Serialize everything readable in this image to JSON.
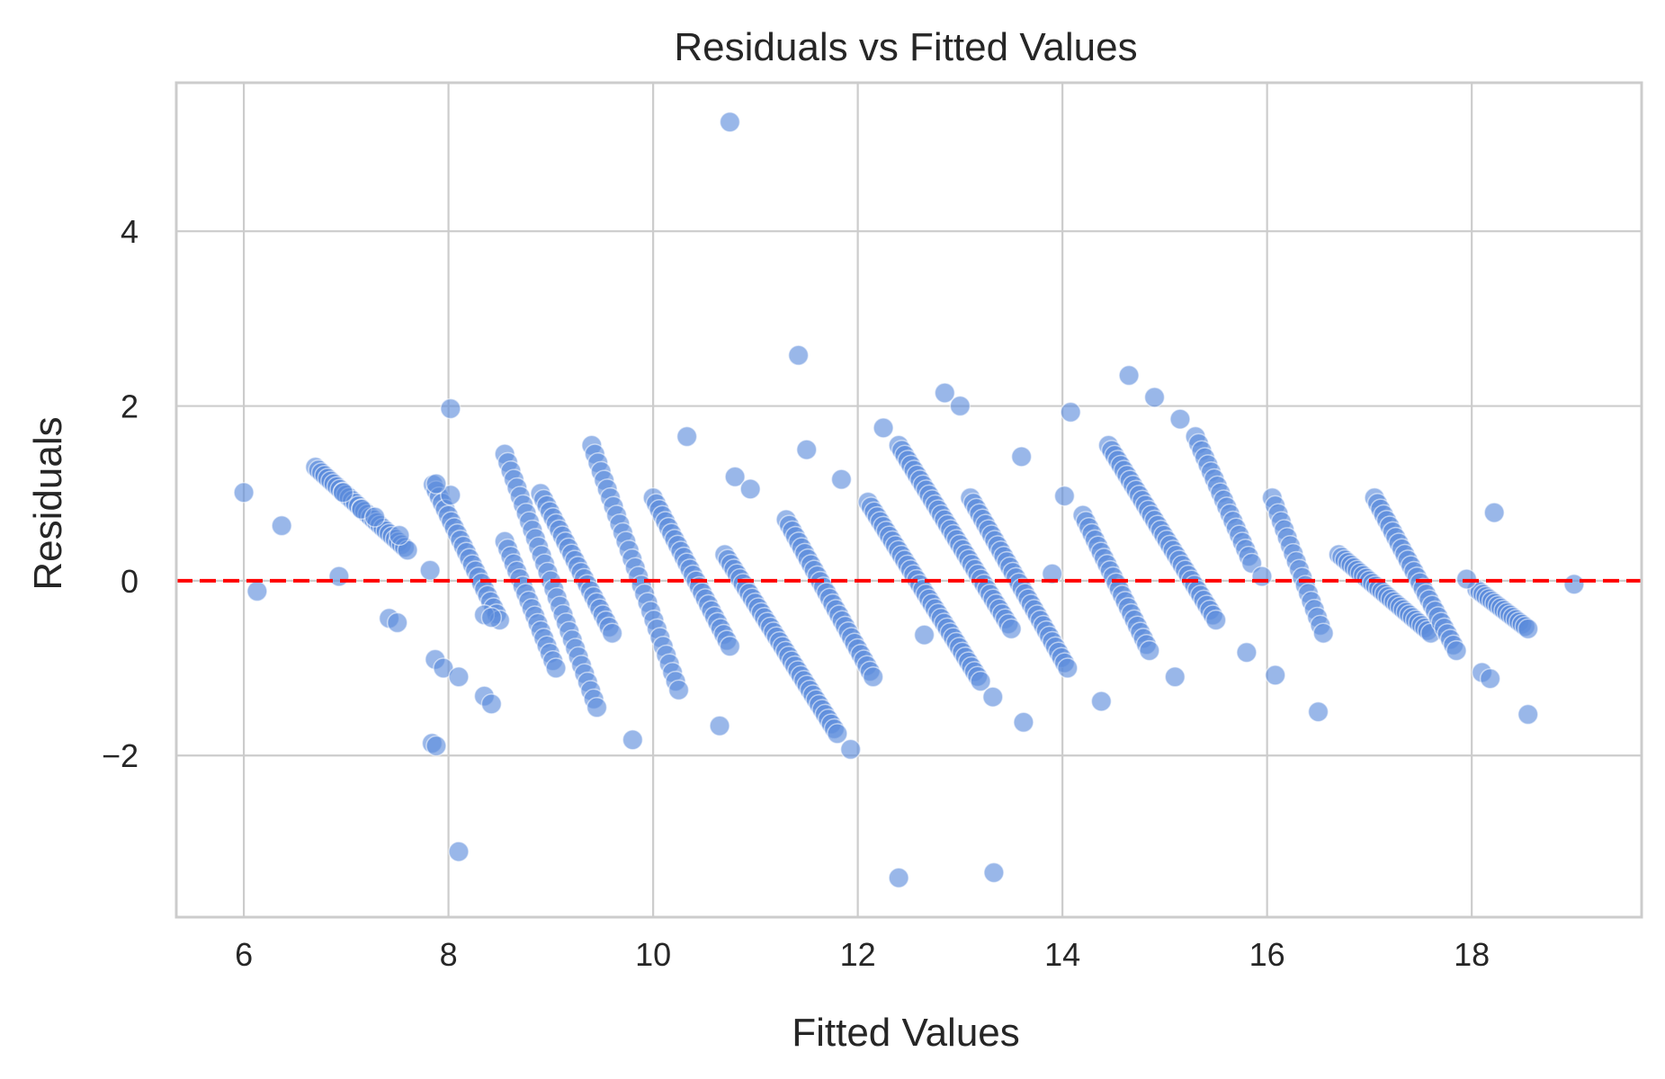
{
  "chart_data": {
    "type": "scatter",
    "title": "Residuals vs Fitted Values",
    "xlabel": "Fitted Values",
    "ylabel": "Residuals",
    "xlim": [
      5.34,
      19.66
    ],
    "ylim": [
      -3.85,
      5.7
    ],
    "x_ticks": [
      6,
      8,
      10,
      12,
      14,
      16,
      18
    ],
    "x_tick_labels": [
      "6",
      "8",
      "10",
      "12",
      "14",
      "16",
      "18"
    ],
    "y_ticks": [
      -2,
      0,
      2,
      4
    ],
    "y_tick_labels": [
      "−2",
      "0",
      "2",
      "4"
    ],
    "grid": true,
    "reference_line": {
      "y": 0,
      "style": "dashed",
      "color": "#ff0000"
    },
    "point_color": "#5b8bdb",
    "bands": [
      {
        "x0": 6.7,
        "x1": 7.6,
        "y0": 1.3,
        "y1": 0.35
      },
      {
        "x0": 7.85,
        "x1": 8.5,
        "y0": 1.1,
        "y1": -0.45
      },
      {
        "x0": 8.55,
        "x1": 9.45,
        "y0": 1.45,
        "y1": -1.45
      },
      {
        "x0": 8.55,
        "x1": 9.05,
        "y0": 0.45,
        "y1": -1.0
      },
      {
        "x0": 9.4,
        "x1": 10.25,
        "y0": 1.55,
        "y1": -1.25
      },
      {
        "x0": 8.9,
        "x1": 9.6,
        "y0": 1.0,
        "y1": -0.6
      },
      {
        "x0": 10.0,
        "x1": 10.75,
        "y0": 0.95,
        "y1": -0.75
      },
      {
        "x0": 10.7,
        "x1": 11.8,
        "y0": 0.3,
        "y1": -1.75
      },
      {
        "x0": 11.3,
        "x1": 12.15,
        "y0": 0.7,
        "y1": -1.1
      },
      {
        "x0": 12.1,
        "x1": 13.2,
        "y0": 0.9,
        "y1": -1.15
      },
      {
        "x0": 12.4,
        "x1": 13.5,
        "y0": 1.55,
        "y1": -0.55
      },
      {
        "x0": 13.1,
        "x1": 14.05,
        "y0": 0.95,
        "y1": -1.0
      },
      {
        "x0": 14.2,
        "x1": 14.85,
        "y0": 0.75,
        "y1": -0.8
      },
      {
        "x0": 14.45,
        "x1": 15.5,
        "y0": 1.55,
        "y1": -0.45
      },
      {
        "x0": 15.3,
        "x1": 15.85,
        "y0": 1.65,
        "y1": 0.2
      },
      {
        "x0": 16.05,
        "x1": 16.55,
        "y0": 0.95,
        "y1": -0.6
      },
      {
        "x0": 16.7,
        "x1": 17.6,
        "y0": 0.3,
        "y1": -0.6
      },
      {
        "x0": 17.05,
        "x1": 17.85,
        "y0": 0.95,
        "y1": -0.8
      },
      {
        "x0": 18.05,
        "x1": 18.55,
        "y0": -0.1,
        "y1": -0.55
      }
    ],
    "points": [
      [
        10.75,
        5.25
      ],
      [
        11.42,
        2.58
      ],
      [
        14.65,
        2.35
      ],
      [
        12.85,
        2.15
      ],
      [
        13.0,
        2.0
      ],
      [
        14.9,
        2.1
      ],
      [
        8.02,
        1.97
      ],
      [
        14.08,
        1.93
      ],
      [
        15.15,
        1.85
      ],
      [
        12.25,
        1.75
      ],
      [
        10.33,
        1.65
      ],
      [
        13.6,
        1.42
      ],
      [
        11.5,
        1.5
      ],
      [
        11.84,
        1.16
      ],
      [
        10.8,
        1.19
      ],
      [
        10.95,
        1.05
      ],
      [
        14.02,
        0.97
      ],
      [
        8.02,
        0.98
      ],
      [
        7.88,
        1.11
      ],
      [
        6.0,
        1.01
      ],
      [
        6.97,
        1.01
      ],
      [
        6.37,
        0.63
      ],
      [
        7.15,
        0.82
      ],
      [
        7.28,
        0.73
      ],
      [
        7.52,
        0.52
      ],
      [
        6.93,
        0.05
      ],
      [
        7.82,
        0.12
      ],
      [
        6.13,
        -0.12
      ],
      [
        7.42,
        -0.43
      ],
      [
        7.5,
        -0.48
      ],
      [
        8.35,
        -0.39
      ],
      [
        8.42,
        -0.42
      ],
      [
        8.35,
        -1.32
      ],
      [
        8.42,
        -1.41
      ],
      [
        7.87,
        -0.9
      ],
      [
        7.95,
        -1.0
      ],
      [
        8.1,
        -1.1
      ],
      [
        7.84,
        -1.86
      ],
      [
        7.88,
        -1.89
      ],
      [
        8.1,
        -3.1
      ],
      [
        9.8,
        -1.82
      ],
      [
        10.65,
        -1.66
      ],
      [
        11.93,
        -1.93
      ],
      [
        12.4,
        -3.4
      ],
      [
        13.33,
        -3.34
      ],
      [
        13.32,
        -1.33
      ],
      [
        13.62,
        -1.62
      ],
      [
        14.38,
        -1.38
      ],
      [
        15.1,
        -1.1
      ],
      [
        15.8,
        -0.82
      ],
      [
        16.08,
        -1.08
      ],
      [
        16.5,
        -1.5
      ],
      [
        18.55,
        -1.53
      ],
      [
        18.22,
        0.78
      ],
      [
        19.0,
        -0.04
      ],
      [
        18.1,
        -1.05
      ],
      [
        18.18,
        -1.12
      ],
      [
        17.95,
        0.02
      ],
      [
        15.95,
        0.05
      ],
      [
        13.9,
        0.08
      ],
      [
        12.65,
        -0.62
      ]
    ]
  }
}
